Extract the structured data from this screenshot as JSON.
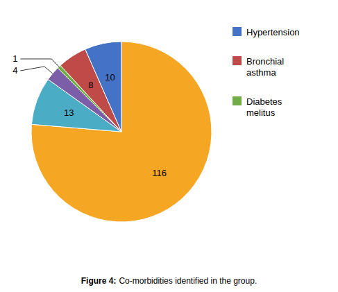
{
  "chart_data": {
    "type": "pie",
    "title": "Figure 4:",
    "subtitle": "Co-morbidities identified in the group.",
    "categories": [
      null,
      null,
      null,
      "Diabetes\nmelitus",
      "Bronchial\nasthma",
      "Hypertension"
    ],
    "values": [
      116,
      13,
      4,
      1,
      8,
      10
    ],
    "colors": [
      "#F5A623",
      "#4BACC6",
      "#7B5EA7",
      "#70AD47",
      "#BE4B48",
      "#4472C4"
    ],
    "data_labels": true,
    "legend": "right"
  }
}
